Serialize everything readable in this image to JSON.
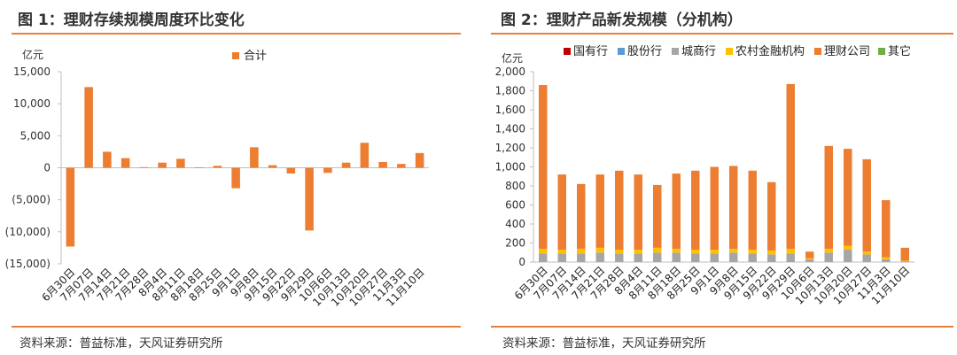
{
  "colors": {
    "accent": "#E8803A",
    "guoyou": "#C00000",
    "gufen": "#5B9BD5",
    "chengshang": "#A6A6A6",
    "nongcun": "#FFC000",
    "licai": "#ED7D31",
    "qita": "#70AD47",
    "axis": "#BFBFBF"
  },
  "panel1": {
    "title": "图 1：理财存续规模周度环比变化",
    "source": "资料来源：普益标准，天风证券研究所"
  },
  "panel2": {
    "title": "图 2：理财产品新发规模（分机构）",
    "source": "资料来源：普益标准，天风证券研究所"
  },
  "chart_data": [
    {
      "type": "bar",
      "title": "图 1：理财存续规模周度环比变化",
      "ylabel": "亿元",
      "ylim": [
        -15000,
        15000
      ],
      "yticks": [
        15000,
        10000,
        5000,
        0,
        -5000,
        -10000,
        -15000
      ],
      "ytick_labels": [
        "15,000",
        "10,000",
        "5,000",
        "0",
        "(5,000)",
        "(10,000)",
        "(15,000)"
      ],
      "legend_position": "top-center",
      "categories": [
        "6月30日",
        "7月07日",
        "7月14日",
        "7月21日",
        "7月28日",
        "8月4日",
        "8月11日",
        "8月18日",
        "8月25日",
        "9月1日",
        "9月8日",
        "9月15日",
        "9月22日",
        "9月29日",
        "10月6日",
        "10月13日",
        "10月20日",
        "10月27日",
        "11月3日",
        "11月10日"
      ],
      "series": [
        {
          "name": "合计",
          "color_key": "licai",
          "values": [
            -12300,
            12600,
            2500,
            1500,
            100,
            800,
            1400,
            50,
            300,
            -3200,
            3200,
            400,
            -900,
            -9800,
            -800,
            800,
            3900,
            900,
            600,
            2300
          ]
        }
      ]
    },
    {
      "type": "stacked-bar",
      "title": "图 2：理财产品新发规模（分机构）",
      "ylabel": "亿元",
      "ylim": [
        0,
        2000
      ],
      "yticks": [
        0,
        200,
        400,
        600,
        800,
        1000,
        1200,
        1400,
        1600,
        1800,
        2000
      ],
      "ytick_labels": [
        "0",
        "200",
        "400",
        "600",
        "800",
        "1,000",
        "1,200",
        "1,400",
        "1,600",
        "1,800",
        "2,000"
      ],
      "legend_position": "top",
      "categories": [
        "6月30日",
        "7月07日",
        "7月14日",
        "7月21日",
        "7月28日",
        "8月4日",
        "8月11日",
        "8月18日",
        "8月25日",
        "9月1日",
        "9月8日",
        "9月15日",
        "9月22日",
        "9月29日",
        "10月6日",
        "10月13日",
        "10月20日",
        "10月27日",
        "11月3日",
        "11月10日"
      ],
      "series": [
        {
          "name": "国有行",
          "color_key": "guoyou",
          "values": [
            0,
            0,
            0,
            0,
            0,
            0,
            0,
            0,
            0,
            0,
            0,
            0,
            0,
            0,
            0,
            0,
            0,
            0,
            0,
            0
          ]
        },
        {
          "name": "股份行",
          "color_key": "gufen",
          "values": [
            0,
            0,
            0,
            0,
            0,
            0,
            0,
            0,
            0,
            0,
            0,
            0,
            0,
            0,
            0,
            0,
            0,
            0,
            0,
            0
          ]
        },
        {
          "name": "城商行",
          "color_key": "chengshang",
          "values": [
            90,
            90,
            90,
            100,
            90,
            90,
            100,
            100,
            90,
            90,
            100,
            90,
            80,
            90,
            30,
            100,
            130,
            80,
            30,
            10
          ]
        },
        {
          "name": "农村金融机构",
          "color_key": "nongcun",
          "values": [
            50,
            40,
            50,
            50,
            40,
            40,
            50,
            40,
            40,
            40,
            40,
            40,
            40,
            50,
            10,
            40,
            40,
            30,
            20,
            5
          ]
        },
        {
          "name": "理财公司",
          "color_key": "licai",
          "values": [
            1720,
            790,
            680,
            770,
            830,
            790,
            660,
            790,
            830,
            870,
            870,
            830,
            720,
            1730,
            70,
            1080,
            1020,
            970,
            600,
            135
          ]
        },
        {
          "name": "其它",
          "color_key": "qita",
          "values": [
            0,
            0,
            0,
            0,
            0,
            0,
            0,
            0,
            0,
            0,
            0,
            0,
            0,
            0,
            0,
            0,
            0,
            0,
            0,
            0
          ]
        }
      ]
    }
  ]
}
